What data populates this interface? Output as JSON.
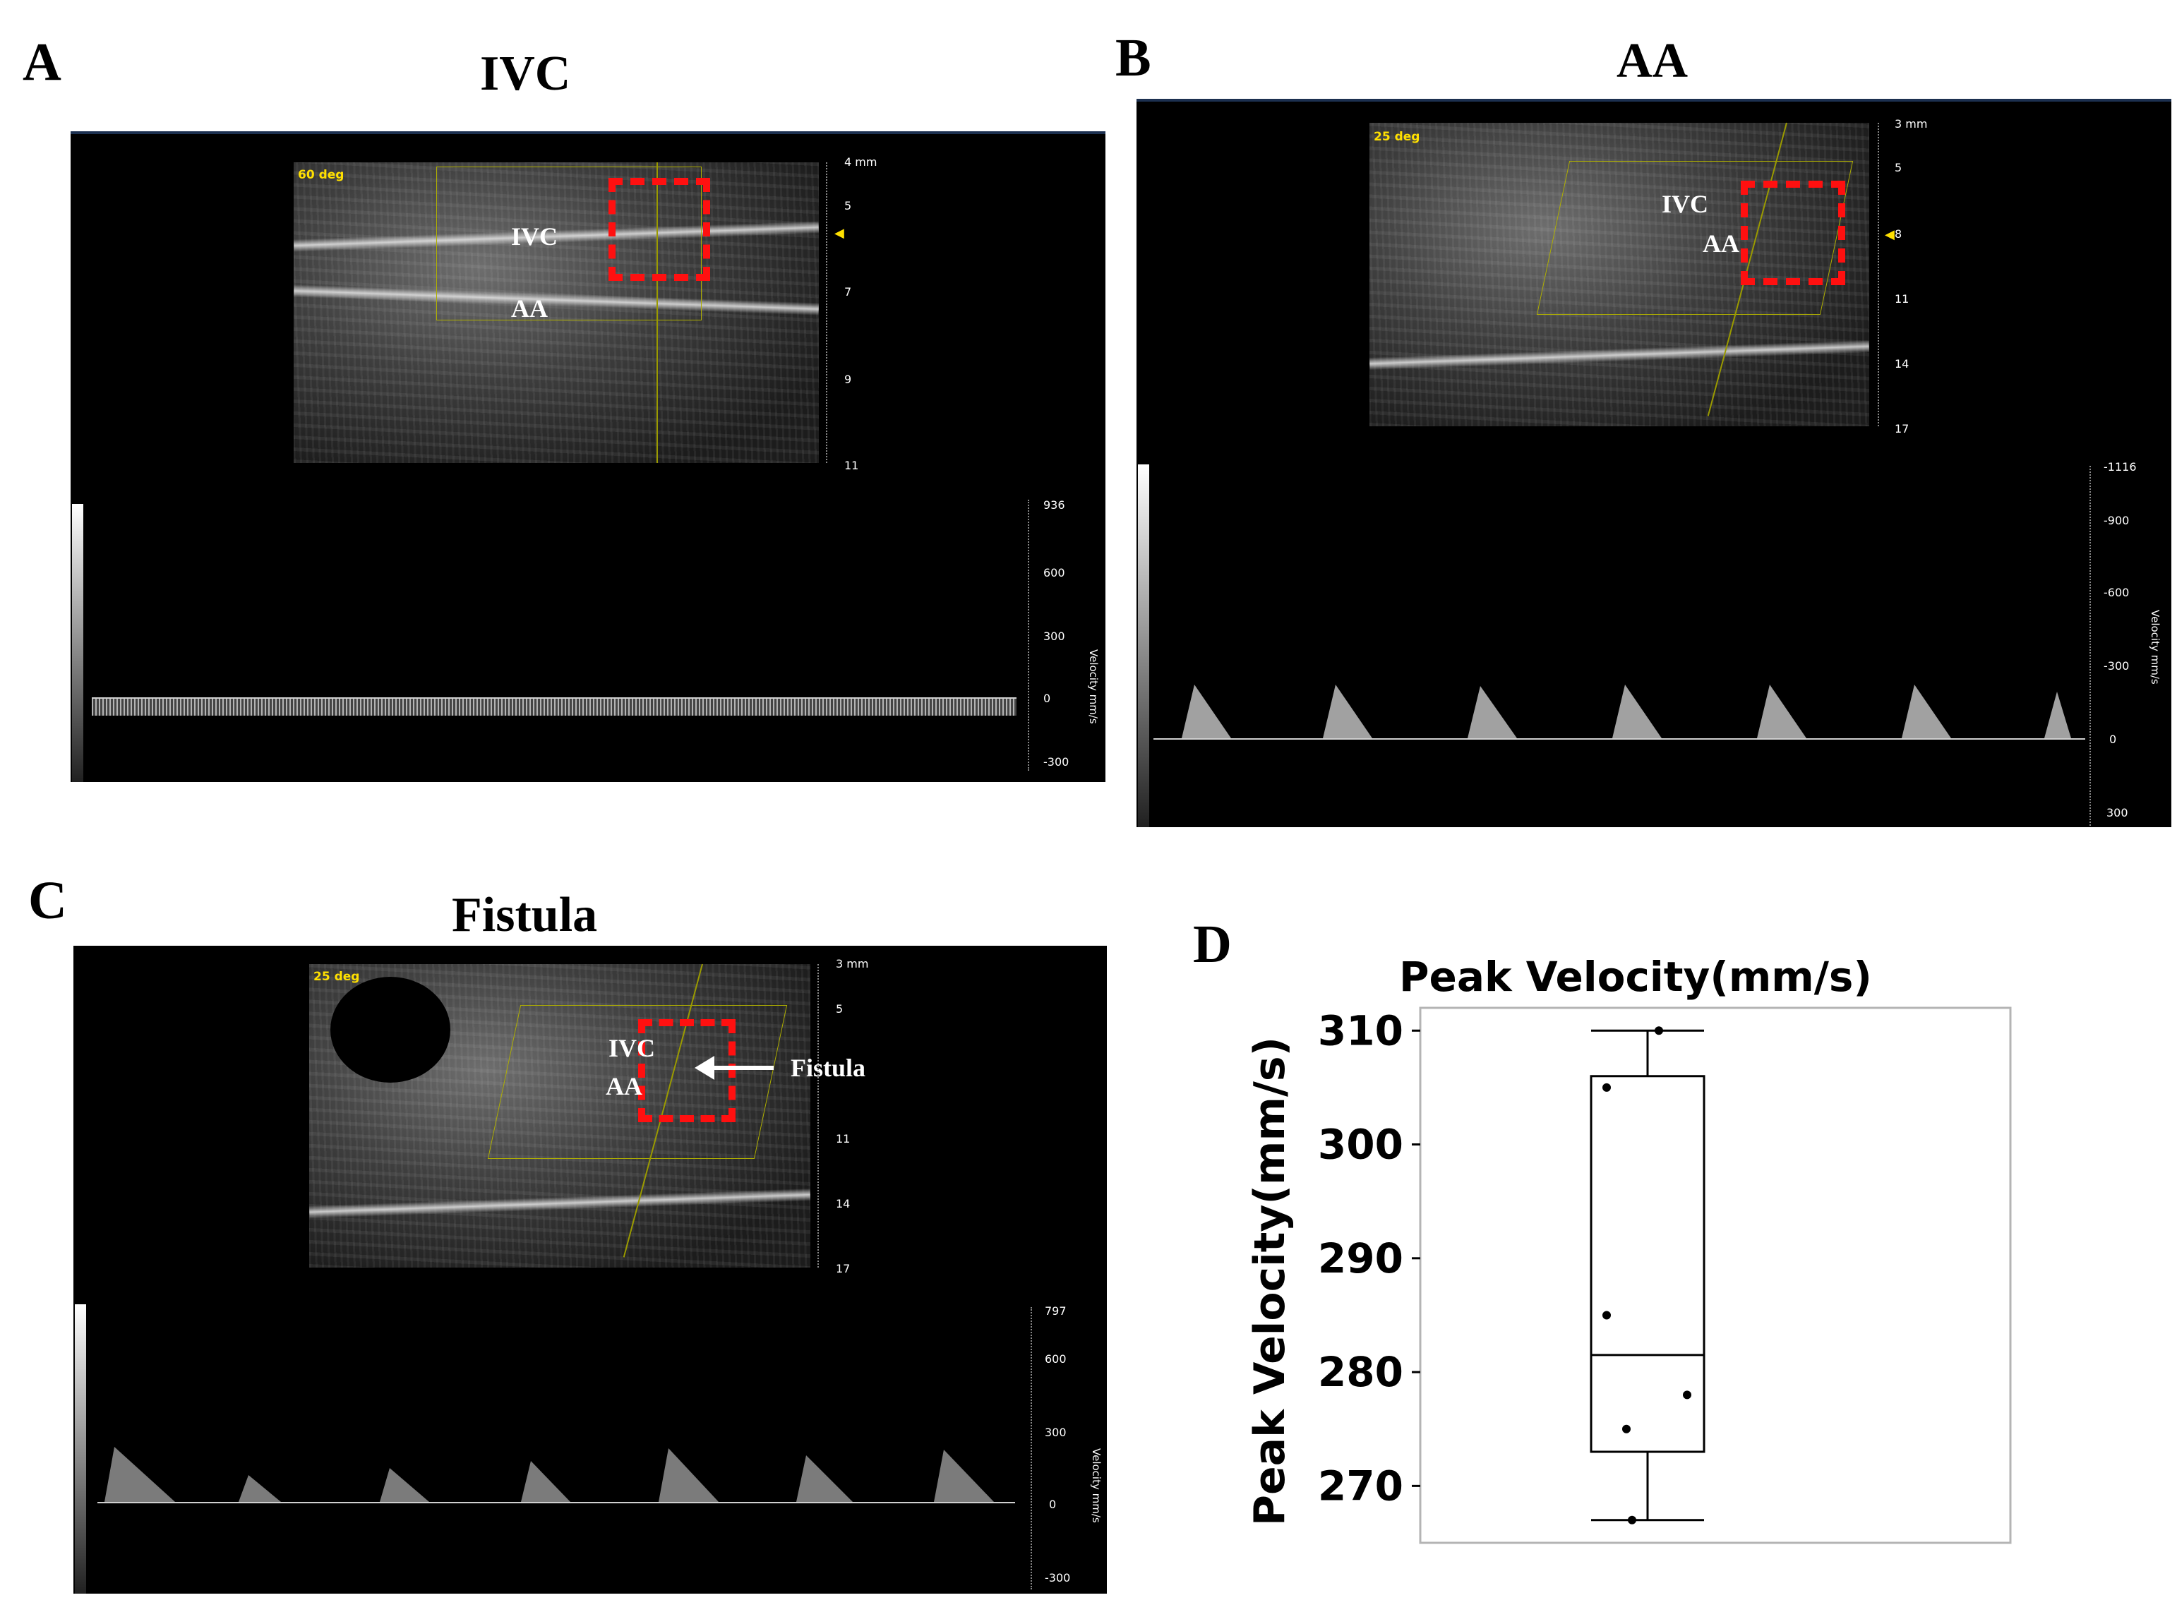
{
  "panels": {
    "A": {
      "letter": "A",
      "title": "IVC",
      "angle": "60 deg",
      "labels": {
        "ivc": "IVC",
        "aa": "AA"
      },
      "depth_ticks": [
        "4 mm",
        "5",
        "7",
        "9",
        "11"
      ],
      "velocity_ticks": [
        "936",
        "600",
        "300",
        "0",
        "-300"
      ],
      "velocity_axis": "Velocity mm/s"
    },
    "B": {
      "letter": "B",
      "title": "AA",
      "angle": "25 deg",
      "labels": {
        "ivc": "IVC",
        "aa": "AA"
      },
      "depth_ticks": [
        "3 mm",
        "5",
        "8",
        "11",
        "14",
        "17"
      ],
      "velocity_ticks": [
        "-1116",
        "-900",
        "-600",
        "-300",
        "0",
        "300"
      ],
      "velocity_axis": "Velocity mm/s"
    },
    "C": {
      "letter": "C",
      "title": "Fistula",
      "angle": "25 deg",
      "labels": {
        "ivc": "IVC",
        "aa": "AA",
        "fistula": "Fistula"
      },
      "depth_ticks": [
        "3 mm",
        "5",
        "11",
        "14",
        "17"
      ],
      "velocity_ticks": [
        "797",
        "600",
        "300",
        "0",
        "-300"
      ],
      "velocity_axis": "Velocity mm/s"
    },
    "D": {
      "letter": "D"
    }
  },
  "chart_data": {
    "type": "box",
    "title": "Peak Velocity(mm/s)",
    "ylabel": "Peak Velocity(mm/s)",
    "xlabel": "",
    "ylim": [
      265,
      312
    ],
    "yticks": [
      270,
      280,
      290,
      300,
      310
    ],
    "box": {
      "min": 267,
      "q1": 273,
      "median": 281.5,
      "q3": 306,
      "max": 310
    },
    "points": [
      310,
      305,
      285,
      278,
      275,
      267
    ],
    "grid": false
  },
  "colors": {
    "roi_box": "#ff1010",
    "angle_text": "#ffe000",
    "roi_outline": "#b0b000"
  }
}
